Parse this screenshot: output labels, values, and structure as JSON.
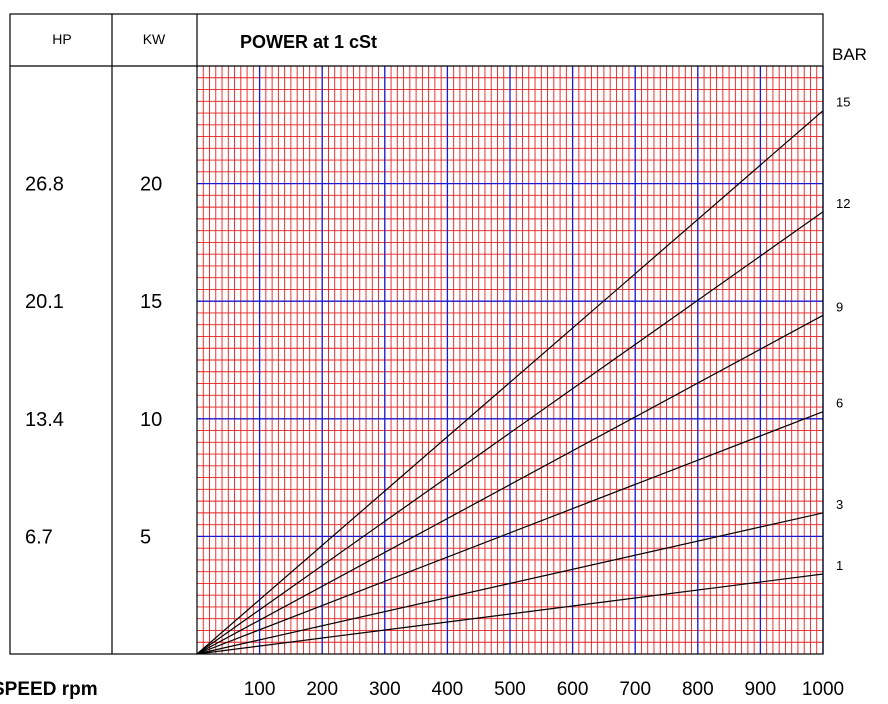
{
  "chart_data": {
    "type": "line",
    "title": "POWER  at 1 cSt",
    "xlabel": "SPEED rpm",
    "left_axes": [
      {
        "header": "HP",
        "ticks": [
          "26.8",
          "20.1",
          "13.4",
          "6.7"
        ]
      },
      {
        "header": "KW",
        "ticks": [
          "20",
          "15",
          "10",
          "5"
        ]
      }
    ],
    "right_axis": {
      "header": "BAR"
    },
    "x_ticks": [
      "100",
      "200",
      "300",
      "400",
      "500",
      "600",
      "700",
      "800",
      "900",
      "1000"
    ],
    "xlim": [
      0,
      1000
    ],
    "ylim": [
      0,
      25
    ],
    "kw_ticks": [
      5,
      10,
      15,
      20
    ],
    "grid": {
      "minor": "red",
      "major": "blue"
    },
    "series": [
      {
        "name": "1",
        "x": [
          0,
          1000
        ],
        "y": [
          0,
          3.4
        ]
      },
      {
        "name": "3",
        "x": [
          0,
          1000
        ],
        "y": [
          0,
          6.0
        ]
      },
      {
        "name": "6",
        "x": [
          0,
          1000
        ],
        "y": [
          0,
          10.3
        ]
      },
      {
        "name": "9",
        "x": [
          0,
          1000
        ],
        "y": [
          0,
          14.4
        ]
      },
      {
        "name": "12",
        "x": [
          0,
          1000
        ],
        "y": [
          0,
          18.8
        ]
      },
      {
        "name": "15",
        "x": [
          0,
          1000
        ],
        "y": [
          0,
          23.1
        ]
      }
    ],
    "colors": {
      "minor_grid": "#e81e1e",
      "major_grid": "#1a1ad6",
      "curve": "#000000",
      "frame": "#000000"
    }
  }
}
